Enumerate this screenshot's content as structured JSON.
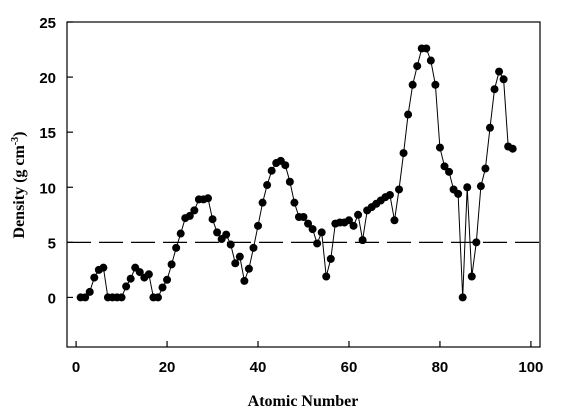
{
  "chart_data": {
    "type": "scatter",
    "xlabel": "Atomic Number",
    "ylabel_main": "Density (g cm",
    "ylabel_sup": "-3",
    "ylabel_close": ")",
    "xlim": [
      -2,
      102
    ],
    "ylim": [
      -4.5,
      25
    ],
    "xticks": [
      0,
      20,
      40,
      60,
      80,
      100
    ],
    "yticks": [
      0,
      5,
      10,
      15,
      20,
      25
    ],
    "xtick_labels": [
      "0",
      "20",
      "40",
      "60",
      "80",
      "100"
    ],
    "ytick_labels": [
      "0",
      "5",
      "10",
      "15",
      "20",
      "25"
    ],
    "reference_line": {
      "y": 5,
      "style": "dashed"
    },
    "series": [
      {
        "marker": "circle",
        "connected": true,
        "color": "#000000",
        "x": [
          1,
          2,
          3,
          4,
          5,
          6,
          7,
          8,
          9,
          10,
          11,
          12,
          13,
          14,
          15,
          16,
          17,
          18,
          19,
          20,
          21,
          22,
          23,
          24,
          25,
          26,
          27,
          28,
          29,
          30,
          31,
          32,
          33,
          34,
          35,
          36,
          37,
          38,
          39,
          40,
          41,
          42,
          43,
          44,
          45,
          46,
          47,
          48,
          49,
          50,
          51,
          52,
          53,
          54,
          55,
          56,
          57,
          58,
          59,
          60,
          61,
          62,
          63,
          64,
          65,
          66,
          67,
          68,
          69,
          70,
          71,
          72,
          73,
          74,
          75,
          76,
          77,
          78,
          79,
          80,
          81,
          82,
          83,
          84,
          85,
          86,
          87,
          88,
          89,
          90,
          91,
          92,
          93,
          94,
          95,
          96
        ],
        "y": [
          0.0,
          0.0,
          0.5,
          1.8,
          2.5,
          2.7,
          0.0,
          0.0,
          0.0,
          0.0,
          1.0,
          1.7,
          2.7,
          2.3,
          1.8,
          2.1,
          0.0,
          0.0,
          0.9,
          1.6,
          3.0,
          4.5,
          5.8,
          7.2,
          7.4,
          7.9,
          8.9,
          8.9,
          9.0,
          7.1,
          5.9,
          5.3,
          5.7,
          4.8,
          3.1,
          3.7,
          1.5,
          2.6,
          4.5,
          6.5,
          8.6,
          10.2,
          11.5,
          12.2,
          12.4,
          12.0,
          10.5,
          8.6,
          7.3,
          7.3,
          6.7,
          6.2,
          4.9,
          5.9,
          1.9,
          3.5,
          6.7,
          6.8,
          6.8,
          7.0,
          6.5,
          7.5,
          5.2,
          7.9,
          8.2,
          8.5,
          8.8,
          9.1,
          9.3,
          7.0,
          9.8,
          13.1,
          16.6,
          19.3,
          21.0,
          22.6,
          22.6,
          21.5,
          19.3,
          13.6,
          11.9,
          11.4,
          9.8,
          9.4,
          0.0,
          10.0,
          1.9,
          5.0,
          10.1,
          11.7,
          15.4,
          18.9,
          20.5,
          19.8,
          13.7,
          13.5
        ]
      }
    ]
  }
}
